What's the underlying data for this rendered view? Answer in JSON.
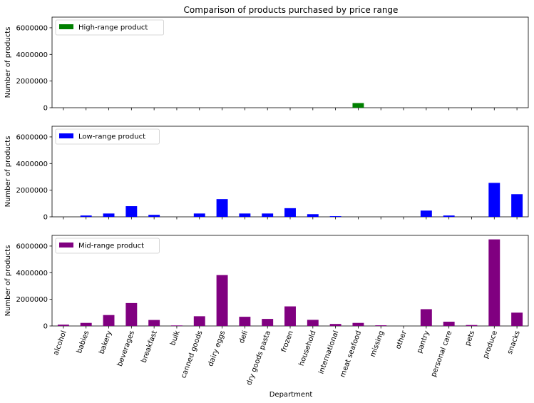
{
  "chart_data": {
    "type": "bar",
    "title": "Comparison of products purchased by price range",
    "xlabel": "Department",
    "ylabel": "Number of products",
    "ylim": [
      0,
      6800000
    ],
    "yticks": [
      0,
      2000000,
      4000000,
      6000000
    ],
    "categories": [
      "alcohol",
      "babies",
      "bakery",
      "beverages",
      "breakfast",
      "bulk",
      "canned goods",
      "dairy eggs",
      "deli",
      "dry goods pasta",
      "frozen",
      "household",
      "international",
      "meat seafood",
      "missing",
      "other",
      "pantry",
      "personal care",
      "pets",
      "produce",
      "snacks"
    ],
    "legend_position": "upper left",
    "series": [
      {
        "name": "High-range product",
        "color": "#008000",
        "values": [
          0,
          0,
          0,
          0,
          0,
          0,
          0,
          0,
          0,
          0,
          0,
          0,
          0,
          350000,
          0,
          0,
          0,
          0,
          0,
          0,
          0
        ]
      },
      {
        "name": "Low-range product",
        "color": "#0000ff",
        "values": [
          0,
          100000,
          250000,
          800000,
          150000,
          0,
          250000,
          1330000,
          250000,
          250000,
          650000,
          200000,
          50000,
          0,
          0,
          0,
          470000,
          100000,
          0,
          2550000,
          1700000
        ]
      },
      {
        "name": "Mid-range product",
        "color": "#800080",
        "values": [
          100000,
          230000,
          820000,
          1720000,
          450000,
          40000,
          730000,
          3820000,
          690000,
          530000,
          1470000,
          460000,
          150000,
          230000,
          50000,
          0,
          1260000,
          320000,
          70000,
          6500000,
          1000000
        ]
      }
    ]
  }
}
